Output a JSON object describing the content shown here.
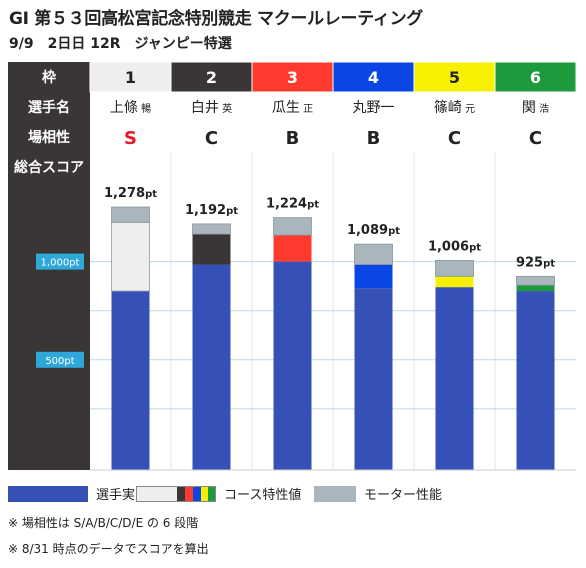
{
  "title": "GI 第５３回高松宮記念特別競走 マクールレーティング",
  "subtitle": "9/9　2日日 12R　ジャンピー特選",
  "row_headers": {
    "waku": "枠",
    "player": "選手名",
    "compat": "場相性",
    "total": "総合スコア"
  },
  "entries": [
    {
      "waku": "1",
      "surname": "上條",
      "given": "暢",
      "compat": "S",
      "total_label": "1,278pt"
    },
    {
      "waku": "2",
      "surname": "白井",
      "given": "英",
      "compat": "C",
      "total_label": "1,192pt"
    },
    {
      "waku": "3",
      "surname": "瓜生",
      "given": "正",
      "compat": "B",
      "total_label": "1,224pt"
    },
    {
      "waku": "4",
      "surname": "丸野一",
      "given": "",
      "compat": "B",
      "total_label": "1,089pt"
    },
    {
      "waku": "5",
      "surname": "篠崎",
      "given": "元",
      "compat": "C",
      "total_label": "1,006pt"
    },
    {
      "waku": "6",
      "surname": "関",
      "given": "浩",
      "compat": "C",
      "total_label": "925pt"
    }
  ],
  "colors": {
    "waku_bg": [
      "#eeeeee",
      "#3a3636",
      "#ff3b30",
      "#0a46e6",
      "#f7f000",
      "#1c9a3c"
    ],
    "waku_fg": [
      "#222222",
      "#ffffff",
      "#ffffff",
      "#ffffff",
      "#222222",
      "#ffffff"
    ],
    "compat_S": "#e8192c",
    "compat_other": "#222222",
    "player_strength": "#3551b8",
    "motor": "#a9b6bd",
    "gridline": "#b9dce4",
    "tick_badge": "#2ea8d8"
  },
  "legend": {
    "player_strength": "選手実力値",
    "course": "コース特性値",
    "motor": "モーター性能"
  },
  "notes": [
    "※ 場相性は S/A/B/C/D/E の 6 段階",
    "※ 8/31 時点のデータでスコアを算出"
  ],
  "chart_data": {
    "type": "bar",
    "stacked": true,
    "categories": [
      "1",
      "2",
      "3",
      "4",
      "5",
      "6"
    ],
    "series": [
      {
        "name": "選手実力値",
        "values": [
          850,
          985,
          1000,
          865,
          870,
          850
        ]
      },
      {
        "name": "コース特性値",
        "values": [
          350,
          155,
          135,
          120,
          55,
          30
        ]
      },
      {
        "name": "モーター性能",
        "values": [
          78,
          52,
          89,
          104,
          81,
          45
        ]
      }
    ],
    "totals": [
      1278,
      1192,
      1224,
      1089,
      1006,
      925
    ],
    "yticks": [
      {
        "value": 500,
        "label": "500pt"
      },
      {
        "value": 1000,
        "label": "1,000pt"
      }
    ],
    "ylim": [
      0,
      1600
    ],
    "grid": true
  }
}
